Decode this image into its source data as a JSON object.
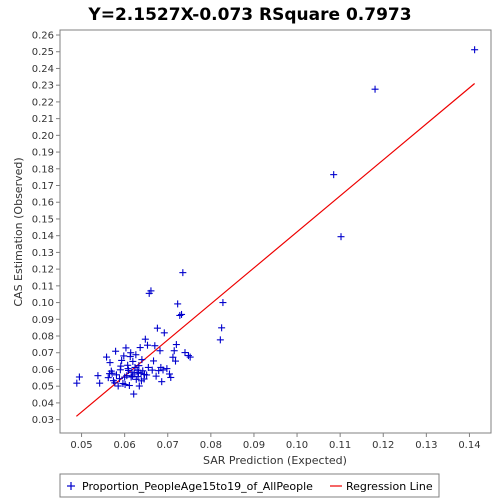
{
  "chart_data": {
    "type": "scatter",
    "title": "Y=2.1527X-0.073    RSquare 0.7973",
    "xlabel": "SAR Prediction (Expected)",
    "ylabel": "CAS Estimation (Observed)",
    "xlim": [
      0.045,
      0.145
    ],
    "ylim": [
      0.022,
      0.263
    ],
    "x_ticks": [
      0.05,
      0.06,
      0.07,
      0.08,
      0.09,
      0.1,
      0.11,
      0.12,
      0.13,
      0.14
    ],
    "x_tick_labels": [
      "0.05",
      "0.06",
      "0.07",
      "0.08",
      "0.09",
      "0.10",
      "0.11",
      "0.12",
      "0.13",
      "0.14"
    ],
    "y_ticks": [
      0.03,
      0.04,
      0.05,
      0.06,
      0.07,
      0.08,
      0.09,
      0.1,
      0.11,
      0.12,
      0.13,
      0.14,
      0.15,
      0.16,
      0.17,
      0.18,
      0.19,
      0.2,
      0.21,
      0.22,
      0.23,
      0.24,
      0.25,
      0.26
    ],
    "y_tick_labels": [
      "0.03",
      "0.04",
      "0.05",
      "0.06",
      "0.07",
      "0.08",
      "0.09",
      "0.10",
      "0.11",
      "0.12",
      "0.13",
      "0.14",
      "0.15",
      "0.16",
      "0.17",
      "0.18",
      "0.19",
      "0.20",
      "0.21",
      "0.22",
      "0.23",
      "0.24",
      "0.25",
      "0.26"
    ],
    "grid": false,
    "legend_position": "bottom",
    "series": [
      {
        "name": "Proportion_PeopleAge15to19_of_AllPeople",
        "type": "scatter",
        "marker": "+",
        "color": "#0000cc",
        "points": [
          [
            0.0489,
            0.0518
          ],
          [
            0.0495,
            0.0555
          ],
          [
            0.0538,
            0.0563
          ],
          [
            0.0542,
            0.0518
          ],
          [
            0.0558,
            0.0674
          ],
          [
            0.0562,
            0.0551
          ],
          [
            0.0566,
            0.0641
          ],
          [
            0.0571,
            0.0577
          ],
          [
            0.0574,
            0.0533
          ],
          [
            0.0579,
            0.0709
          ],
          [
            0.0581,
            0.0568
          ],
          [
            0.0585,
            0.0501
          ],
          [
            0.0588,
            0.0545
          ],
          [
            0.059,
            0.0598
          ],
          [
            0.0593,
            0.0654
          ],
          [
            0.0596,
            0.0516
          ],
          [
            0.0598,
            0.0681
          ],
          [
            0.06,
            0.0554
          ],
          [
            0.0603,
            0.0729
          ],
          [
            0.0605,
            0.0563
          ],
          [
            0.0607,
            0.0625
          ],
          [
            0.0609,
            0.0594
          ],
          [
            0.0611,
            0.0504
          ],
          [
            0.0613,
            0.0677
          ],
          [
            0.0615,
            0.0555
          ],
          [
            0.0617,
            0.0583
          ],
          [
            0.0619,
            0.0648
          ],
          [
            0.0621,
            0.0453
          ],
          [
            0.0622,
            0.0573
          ],
          [
            0.0624,
            0.0612
          ],
          [
            0.0626,
            0.0688
          ],
          [
            0.0627,
            0.0541
          ],
          [
            0.0629,
            0.0596
          ],
          [
            0.0631,
            0.0557
          ],
          [
            0.0633,
            0.0623
          ],
          [
            0.0634,
            0.0501
          ],
          [
            0.0636,
            0.0731
          ],
          [
            0.0638,
            0.0577
          ],
          [
            0.064,
            0.0659
          ],
          [
            0.0642,
            0.0592
          ],
          [
            0.0645,
            0.0543
          ],
          [
            0.0648,
            0.0781
          ],
          [
            0.0651,
            0.0567
          ],
          [
            0.0655,
            0.0612
          ],
          [
            0.0657,
            0.1055
          ],
          [
            0.0661,
            0.107
          ],
          [
            0.0664,
            0.0596
          ],
          [
            0.0667,
            0.0651
          ],
          [
            0.067,
            0.0742
          ],
          [
            0.0673,
            0.056
          ],
          [
            0.0676,
            0.0847
          ],
          [
            0.0679,
            0.0593
          ],
          [
            0.0682,
            0.0712
          ],
          [
            0.0686,
            0.0527
          ],
          [
            0.0689,
            0.0597
          ],
          [
            0.0692,
            0.0819
          ],
          [
            0.0704,
            0.0573
          ],
          [
            0.0707,
            0.0552
          ],
          [
            0.0712,
            0.0673
          ],
          [
            0.0715,
            0.0712
          ],
          [
            0.0718,
            0.065
          ],
          [
            0.072,
            0.0749
          ],
          [
            0.0723,
            0.0992
          ],
          [
            0.0728,
            0.0923
          ],
          [
            0.0732,
            0.0929
          ],
          [
            0.0735,
            0.1179
          ],
          [
            0.074,
            0.0701
          ],
          [
            0.0748,
            0.0683
          ],
          [
            0.0752,
            0.0674
          ],
          [
            0.0822,
            0.0777
          ],
          [
            0.0825,
            0.0849
          ],
          [
            0.0828,
            0.1
          ],
          [
            0.1085,
            0.1765
          ],
          [
            0.1102,
            0.1394
          ],
          [
            0.1181,
            0.2276
          ],
          [
            0.1412,
            0.2512
          ],
          [
            0.0565,
            0.0575
          ],
          [
            0.0577,
            0.052
          ],
          [
            0.0601,
            0.051
          ],
          [
            0.0608,
            0.0605
          ],
          [
            0.0614,
            0.07
          ],
          [
            0.0618,
            0.056
          ],
          [
            0.0632,
            0.0582
          ],
          [
            0.0639,
            0.0532
          ],
          [
            0.0646,
            0.057
          ],
          [
            0.0653,
            0.0745
          ],
          [
            0.0684,
            0.0612
          ],
          [
            0.0698,
            0.0605
          ],
          [
            0.0569,
            0.059
          ],
          [
            0.0591,
            0.062
          ]
        ]
      },
      {
        "name": "Regression Line",
        "type": "line",
        "color": "#ee0000",
        "x": [
          0.0488,
          0.1412
        ],
        "y": [
          0.032,
          0.231
        ]
      }
    ]
  }
}
